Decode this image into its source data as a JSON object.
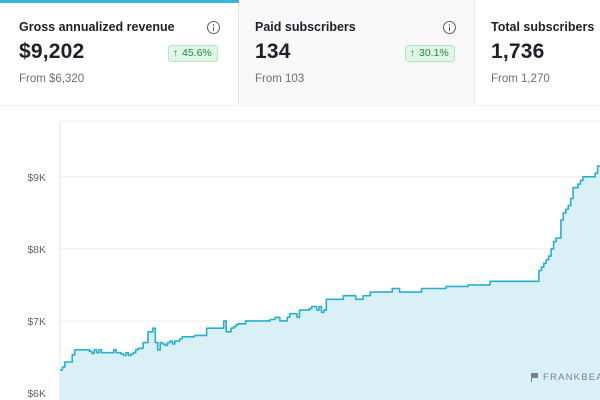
{
  "metrics": [
    {
      "label": "Gross annualized revenue",
      "value": "$9,202",
      "change": "45.6%",
      "from": "From $6,320"
    },
    {
      "label": "Paid subscribers",
      "value": "134",
      "change": "30.1%",
      "from": "From 103"
    },
    {
      "label": "Total subscribers",
      "value": "1,736",
      "from": "From 1,270"
    }
  ],
  "watermark": "FRANKBEAR",
  "colors": {
    "line": "#29aed1",
    "fill": "#d9f0f7",
    "grid": "#ececee",
    "badge_bg": "#dff5e6",
    "badge_text": "#1f8a45",
    "accent": "#3ab4d8"
  },
  "chart_data": {
    "type": "area",
    "title": "",
    "xlabel": "",
    "ylabel": "",
    "ylim": [
      6000,
      9900
    ],
    "y_ticks": [
      6000,
      7000,
      8000,
      9000
    ],
    "y_tick_labels": [
      "$6K",
      "$7K",
      "$8K",
      "$9K"
    ],
    "grid": true,
    "series": [
      {
        "values": [
          6320,
          6360,
          6430,
          6430,
          6430,
          6530,
          6600,
          6600,
          6600,
          6600,
          6600,
          6600,
          6580,
          6550,
          6600,
          6560,
          6600,
          6560,
          6560,
          6560,
          6560,
          6560,
          6600,
          6560,
          6560,
          6540,
          6520,
          6560,
          6520,
          6540,
          6560,
          6600,
          6620,
          6620,
          6700,
          6700,
          6850,
          6850,
          6900,
          6700,
          6600,
          6700,
          6680,
          6660,
          6700,
          6720,
          6680,
          6720,
          6720,
          6750,
          6780,
          6780,
          6780,
          6780,
          6780,
          6800,
          6800,
          6800,
          6800,
          6800,
          6900,
          6900,
          6900,
          6900,
          6900,
          6900,
          6900,
          7000,
          6850,
          6850,
          6900,
          6920,
          6950,
          6960,
          6960,
          6960,
          7000,
          7000,
          7000,
          7000,
          7000,
          7000,
          7000,
          7000,
          7000,
          7000,
          7020,
          7020,
          7050,
          7050,
          7000,
          7000,
          7000,
          7050,
          7100,
          7100,
          7100,
          7050,
          7150,
          7150,
          7150,
          7150,
          7170,
          7200,
          7200,
          7150,
          7200,
          7120,
          7150,
          7300,
          7300,
          7300,
          7300,
          7300,
          7300,
          7300,
          7350,
          7350,
          7350,
          7350,
          7350,
          7300,
          7300,
          7300,
          7350,
          7350,
          7350,
          7400,
          7400,
          7400,
          7400,
          7400,
          7400,
          7400,
          7400,
          7400,
          7450,
          7450,
          7450,
          7400,
          7400,
          7400,
          7400,
          7400,
          7400,
          7400,
          7400,
          7400,
          7450,
          7450,
          7450,
          7450,
          7450,
          7450,
          7450,
          7450,
          7450,
          7450,
          7480,
          7480,
          7480,
          7480,
          7480,
          7480,
          7480,
          7480,
          7480,
          7500,
          7500,
          7500,
          7500,
          7500,
          7500,
          7500,
          7500,
          7500,
          7550,
          7550,
          7550,
          7550,
          7550,
          7550,
          7550,
          7550,
          7550,
          7550,
          7550,
          7550,
          7550,
          7550,
          7550,
          7550,
          7550,
          7550,
          7550,
          7550,
          7700,
          7750,
          7800,
          7850,
          7900,
          8000,
          8100,
          8150,
          8150,
          8400,
          8500,
          8550,
          8600,
          8700,
          8850,
          8850,
          8900,
          8950,
          9000,
          9000,
          9000,
          9000,
          9000,
          9050,
          9150,
          9150
        ]
      }
    ]
  }
}
